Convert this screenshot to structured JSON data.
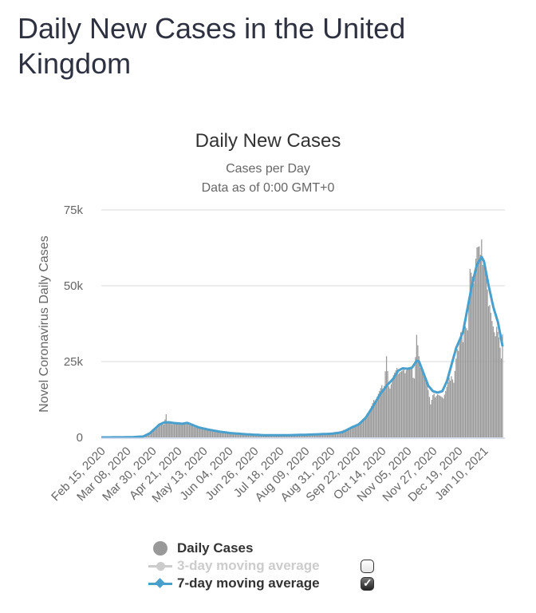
{
  "page": {
    "title": "Daily New Cases in the United Kingdom"
  },
  "colors": {
    "bars": "#999999",
    "ma7": "#4aa0cc",
    "ma3": "#cccccc",
    "grid": "#e6e6e6",
    "axis": "#ccd6eb"
  },
  "chart_data": {
    "type": "bar",
    "title": "Daily New Cases",
    "subtitle_lines": [
      "Cases per Day",
      "Data as of 0:00 GMT+0"
    ],
    "xlabel": "",
    "ylabel": "Novel Coronavirus Daily Cases",
    "ylim": [
      0,
      75000
    ],
    "yticks": [
      {
        "value": 0,
        "label": "0"
      },
      {
        "value": 25000,
        "label": "25k"
      },
      {
        "value": 50000,
        "label": "50k"
      },
      {
        "value": 75000,
        "label": "75k"
      }
    ],
    "grid": true,
    "start_date": "2020-02-15",
    "xticks": [
      {
        "day": 0,
        "label": "Feb 15, 2020"
      },
      {
        "day": 22,
        "label": "Mar 08, 2020"
      },
      {
        "day": 44,
        "label": "Mar 30, 2020"
      },
      {
        "day": 66,
        "label": "Apr 21, 2020"
      },
      {
        "day": 88,
        "label": "May 13, 2020"
      },
      {
        "day": 110,
        "label": "Jun 04, 2020"
      },
      {
        "day": 132,
        "label": "Jun 26, 2020"
      },
      {
        "day": 154,
        "label": "Jul 18, 2020"
      },
      {
        "day": 176,
        "label": "Aug 09, 2020"
      },
      {
        "day": 198,
        "label": "Aug 31, 2020"
      },
      {
        "day": 220,
        "label": "Sep 22, 2020"
      },
      {
        "day": 242,
        "label": "Oct 14, 2020"
      },
      {
        "day": 264,
        "label": "Nov 05, 2020"
      },
      {
        "day": 286,
        "label": "Nov 27, 2020"
      },
      {
        "day": 308,
        "label": "Dec 19, 2020"
      },
      {
        "day": 330,
        "label": "Jan 10, 2021"
      }
    ],
    "x_day_range": [
      -2,
      346
    ],
    "keypoints_daily": [
      [
        0,
        0
      ],
      [
        20,
        20
      ],
      [
        30,
        100
      ],
      [
        36,
        500
      ],
      [
        40,
        1000
      ],
      [
        44,
        2500
      ],
      [
        48,
        3800
      ],
      [
        52,
        4500
      ],
      [
        54,
        7800
      ],
      [
        55,
        4800
      ],
      [
        58,
        4700
      ],
      [
        62,
        4400
      ],
      [
        66,
        4600
      ],
      [
        70,
        4300
      ],
      [
        72,
        5000
      ],
      [
        74,
        4100
      ],
      [
        78,
        3600
      ],
      [
        84,
        3000
      ],
      [
        90,
        2500
      ],
      [
        96,
        2000
      ],
      [
        104,
        1500
      ],
      [
        112,
        1200
      ],
      [
        124,
        900
      ],
      [
        136,
        700
      ],
      [
        150,
        650
      ],
      [
        164,
        800
      ],
      [
        178,
        1000
      ],
      [
        192,
        1300
      ],
      [
        200,
        1400
      ],
      [
        208,
        2500
      ],
      [
        214,
        3500
      ],
      [
        220,
        4200
      ],
      [
        226,
        6500
      ],
      [
        230,
        9500
      ],
      [
        234,
        12500
      ],
      [
        238,
        15000
      ],
      [
        242,
        17500
      ],
      [
        244,
        26500
      ],
      [
        246,
        16000
      ],
      [
        250,
        20500
      ],
      [
        254,
        22000
      ],
      [
        258,
        21500
      ],
      [
        262,
        23500
      ],
      [
        265,
        22000
      ],
      [
        268,
        20000
      ],
      [
        270,
        33500
      ],
      [
        272,
        25500
      ],
      [
        276,
        21000
      ],
      [
        280,
        16500
      ],
      [
        282,
        11000
      ],
      [
        284,
        13500
      ],
      [
        288,
        14500
      ],
      [
        292,
        12500
      ],
      [
        296,
        16500
      ],
      [
        300,
        21000
      ],
      [
        302,
        18000
      ],
      [
        304,
        25000
      ],
      [
        306,
        30000
      ],
      [
        308,
        35000
      ],
      [
        310,
        30500
      ],
      [
        312,
        39000
      ],
      [
        314,
        36000
      ],
      [
        316,
        54500
      ],
      [
        318,
        50000
      ],
      [
        320,
        57000
      ],
      [
        322,
        62000
      ],
      [
        324,
        60000
      ],
      [
        326,
        68000
      ],
      [
        327,
        58000
      ],
      [
        329,
        55000
      ],
      [
        331,
        46000
      ],
      [
        333,
        45000
      ],
      [
        335,
        38000
      ],
      [
        337,
        33000
      ],
      [
        339,
        38000
      ],
      [
        341,
        33000
      ],
      [
        343,
        25000
      ],
      [
        344,
        32000
      ]
    ],
    "keypoints_ma7": [
      [
        0,
        0
      ],
      [
        24,
        50
      ],
      [
        34,
        300
      ],
      [
        40,
        1400
      ],
      [
        44,
        2800
      ],
      [
        48,
        4200
      ],
      [
        52,
        4900
      ],
      [
        56,
        5000
      ],
      [
        62,
        4700
      ],
      [
        68,
        4500
      ],
      [
        72,
        4800
      ],
      [
        76,
        4200
      ],
      [
        82,
        3300
      ],
      [
        90,
        2600
      ],
      [
        100,
        1900
      ],
      [
        110,
        1400
      ],
      [
        124,
        1000
      ],
      [
        140,
        700
      ],
      [
        156,
        700
      ],
      [
        176,
        900
      ],
      [
        196,
        1200
      ],
      [
        206,
        1700
      ],
      [
        214,
        3300
      ],
      [
        220,
        4300
      ],
      [
        226,
        6500
      ],
      [
        232,
        10000
      ],
      [
        238,
        14000
      ],
      [
        244,
        17000
      ],
      [
        250,
        19500
      ],
      [
        254,
        22000
      ],
      [
        258,
        22800
      ],
      [
        262,
        22600
      ],
      [
        266,
        23000
      ],
      [
        270,
        25300
      ],
      [
        272,
        25000
      ],
      [
        276,
        21000
      ],
      [
        280,
        17000
      ],
      [
        284,
        15200
      ],
      [
        288,
        14800
      ],
      [
        292,
        15200
      ],
      [
        296,
        18500
      ],
      [
        300,
        24000
      ],
      [
        304,
        29500
      ],
      [
        308,
        33000
      ],
      [
        310,
        35000
      ],
      [
        314,
        43000
      ],
      [
        318,
        51000
      ],
      [
        322,
        57000
      ],
      [
        326,
        59500
      ],
      [
        328,
        58000
      ],
      [
        332,
        50000
      ],
      [
        336,
        43000
      ],
      [
        340,
        38000
      ],
      [
        344,
        30000
      ]
    ],
    "series": [
      {
        "name": "Daily Cases",
        "visible": true
      },
      {
        "name": "3-day moving average",
        "visible": false
      },
      {
        "name": "7-day moving average",
        "visible": true
      }
    ]
  },
  "legend": {
    "items": [
      {
        "label": "Daily Cases",
        "symbol": "circle-icon",
        "checkbox": null
      },
      {
        "label": "3-day moving average",
        "symbol": "line-dot-icon",
        "checkbox": "unchecked"
      },
      {
        "label": "7-day moving average",
        "symbol": "line-diamond-icon",
        "checkbox": "checked"
      }
    ]
  }
}
